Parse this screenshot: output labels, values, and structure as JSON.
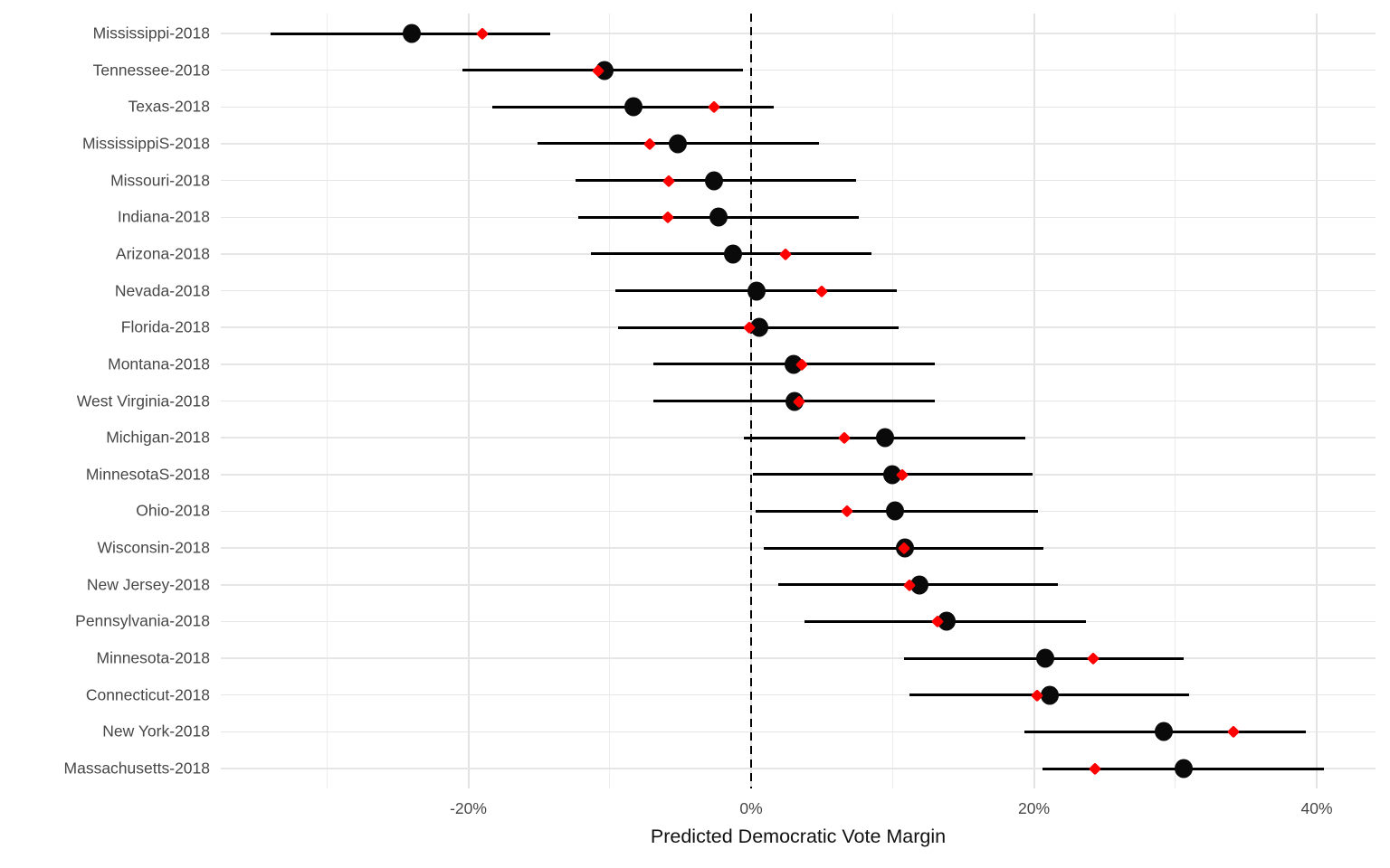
{
  "chart_data": {
    "type": "scatter",
    "subtype": "dot-and-interval (forest plot), horizontal",
    "title": "",
    "xlabel": "Predicted Democratic Vote Margin",
    "ylabel": "",
    "xlim": [
      -37.5,
      44.2
    ],
    "x_major_ticks": [
      {
        "value": -20,
        "label": "-20%"
      },
      {
        "value": 0,
        "label": "0%"
      },
      {
        "value": 20,
        "label": "20%"
      },
      {
        "value": 40,
        "label": "40%"
      }
    ],
    "x_minor_ticks": [
      -30,
      -10,
      10,
      30
    ],
    "zero_reference_line": {
      "value": 0,
      "style": "dashed",
      "color": "#000000"
    },
    "grid": "on",
    "legend": "none",
    "series": [
      {
        "key": "black_dot",
        "marker": "large black circle",
        "color": "#000000",
        "has_interval": true
      },
      {
        "key": "red_dot",
        "marker": "small red diamond",
        "color": "#ff0000",
        "has_interval": false
      }
    ],
    "rows": [
      {
        "label": "Mississippi-2018",
        "black_dot": -24.0,
        "lower": -34.0,
        "upper": -14.2,
        "red_dot": -19.0
      },
      {
        "label": "Tennessee-2018",
        "black_dot": -10.4,
        "lower": -20.4,
        "upper": -0.6,
        "red_dot": -10.8
      },
      {
        "label": "Texas-2018",
        "black_dot": -8.3,
        "lower": -18.3,
        "upper": 1.6,
        "red_dot": -2.6
      },
      {
        "label": "MississippiS-2018",
        "black_dot": -5.2,
        "lower": -15.1,
        "upper": 4.8,
        "red_dot": -7.2
      },
      {
        "label": "Missouri-2018",
        "black_dot": -2.6,
        "lower": -12.4,
        "upper": 7.4,
        "red_dot": -5.8
      },
      {
        "label": "Indiana-2018",
        "black_dot": -2.3,
        "lower": -12.2,
        "upper": 7.6,
        "red_dot": -5.9
      },
      {
        "label": "Arizona-2018",
        "black_dot": -1.3,
        "lower": -11.3,
        "upper": 8.5,
        "red_dot": 2.4
      },
      {
        "label": "Nevada-2018",
        "black_dot": 0.4,
        "lower": -9.6,
        "upper": 10.3,
        "red_dot": 5.0
      },
      {
        "label": "Florida-2018",
        "black_dot": 0.6,
        "lower": -9.4,
        "upper": 10.4,
        "red_dot": -0.1
      },
      {
        "label": "Montana-2018",
        "black_dot": 3.0,
        "lower": -6.9,
        "upper": 13.0,
        "red_dot": 3.6
      },
      {
        "label": "West Virginia-2018",
        "black_dot": 3.1,
        "lower": -6.9,
        "upper": 13.0,
        "red_dot": 3.4
      },
      {
        "label": "Michigan-2018",
        "black_dot": 9.5,
        "lower": -0.5,
        "upper": 19.4,
        "red_dot": 6.6
      },
      {
        "label": "MinnesotaS-2018",
        "black_dot": 10.0,
        "lower": 0.1,
        "upper": 19.9,
        "red_dot": 10.7
      },
      {
        "label": "Ohio-2018",
        "black_dot": 10.2,
        "lower": 0.3,
        "upper": 20.3,
        "red_dot": 6.8
      },
      {
        "label": "Wisconsin-2018",
        "black_dot": 10.9,
        "lower": 0.9,
        "upper": 20.7,
        "red_dot": 10.8
      },
      {
        "label": "New Jersey-2018",
        "black_dot": 11.9,
        "lower": 1.9,
        "upper": 21.7,
        "red_dot": 11.2
      },
      {
        "label": "Pennsylvania-2018",
        "black_dot": 13.8,
        "lower": 3.8,
        "upper": 23.7,
        "red_dot": 13.2
      },
      {
        "label": "Minnesota-2018",
        "black_dot": 20.8,
        "lower": 10.8,
        "upper": 30.6,
        "red_dot": 24.2
      },
      {
        "label": "Connecticut-2018",
        "black_dot": 21.1,
        "lower": 11.2,
        "upper": 31.0,
        "red_dot": 20.2
      },
      {
        "label": "New York-2018",
        "black_dot": 29.2,
        "lower": 19.3,
        "upper": 39.2,
        "red_dot": 34.1
      },
      {
        "label": "Massachusetts-2018",
        "black_dot": 30.6,
        "lower": 20.6,
        "upper": 40.5,
        "red_dot": 24.3
      }
    ]
  },
  "colors": {
    "background": "#ffffff",
    "major_grid": "#e3e3e3",
    "minor_grid": "#ededed",
    "axis_text": "#474747",
    "axis_title": "#111111",
    "black_point": "#000000",
    "red_point": "#ff0000"
  }
}
